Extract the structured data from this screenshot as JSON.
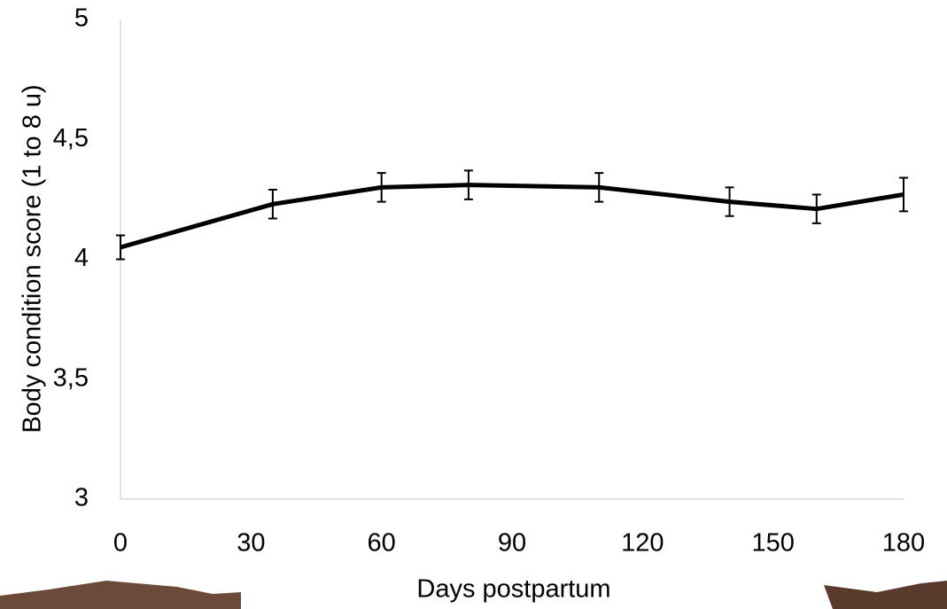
{
  "chart_data": {
    "type": "line",
    "x_label": "Days postpartum",
    "y_label": "Body condition score (1 to 8 u)",
    "x": [
      0,
      35,
      60,
      80,
      110,
      140,
      160,
      180
    ],
    "values": [
      4.05,
      4.23,
      4.3,
      4.31,
      4.3,
      4.24,
      4.21,
      4.27
    ],
    "errors": [
      0.05,
      0.06,
      0.06,
      0.06,
      0.06,
      0.06,
      0.06,
      0.07
    ],
    "color": "#000000",
    "xlim": [
      0,
      180
    ],
    "xticks": [
      0,
      30,
      60,
      90,
      120,
      150,
      180
    ],
    "ylim": [
      3,
      5
    ],
    "yticks": [
      3,
      {
        "value": 3.5,
        "label": "3,5"
      },
      4,
      {
        "value": 4.5,
        "label": "4,5"
      },
      5
    ],
    "grid": false
  }
}
